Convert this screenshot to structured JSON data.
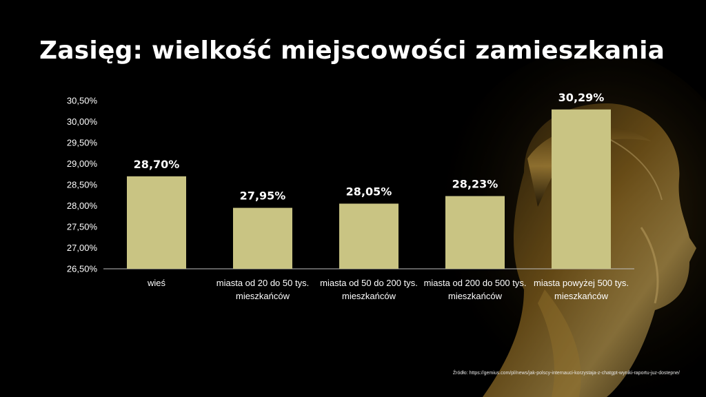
{
  "slide": {
    "title": "Zasięg: wielkość miejscowości zamieszkania",
    "source": "Źródło: https://gemius.com/pl/news/jak-polscy-internauci-korzystaja-z-chatgpt-wyniki-raportu-juz-dostepne/"
  },
  "colors": {
    "background": "#000000",
    "bar": "#c9c483",
    "text": "#ffffff",
    "axis": "#bfbfbf",
    "accent_gold": "#b8862e"
  },
  "chart_data": {
    "type": "bar",
    "title": "",
    "xlabel": "",
    "ylabel": "",
    "categories": [
      "wieś",
      "miasta od 20 do 50 tys. mieszkańców",
      "miasta od 50 do 200 tys. mieszkańców",
      "miasta od 200 do 500 tys. mieszkańców",
      "miasta powyżej 500 tys. mieszkańców"
    ],
    "category_lines": [
      [
        "wieś"
      ],
      [
        "miasta od 20 do 50 tys.",
        "mieszkańców"
      ],
      [
        "miasta od 50 do 200 tys.",
        "mieszkańców"
      ],
      [
        "miasta od 200 do 500 tys.",
        "mieszkańców"
      ],
      [
        "miasta powyżej 500 tys.",
        "mieszkańców"
      ]
    ],
    "values": [
      28.7,
      27.95,
      28.05,
      28.23,
      30.29
    ],
    "data_labels": [
      "28,70%",
      "27,95%",
      "28,05%",
      "28,23%",
      "30,29%"
    ],
    "ylim": [
      26.5,
      30.5
    ],
    "yticks": [
      26.5,
      27.0,
      27.5,
      28.0,
      28.5,
      29.0,
      29.5,
      30.0,
      30.5
    ],
    "ytick_labels": [
      "26,50%",
      "27,00%",
      "27,50%",
      "28,00%",
      "28,50%",
      "29,00%",
      "29,50%",
      "30,00%",
      "30,50%"
    ],
    "grid": false,
    "legend": "none"
  }
}
